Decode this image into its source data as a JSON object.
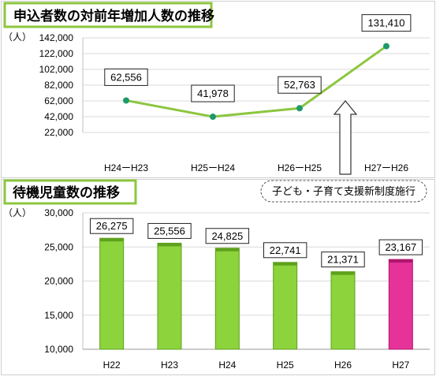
{
  "colors": {
    "title_border": "#8cc63f",
    "line": "#8cc63f",
    "marker": "#1e9a6a",
    "bar_green": "#8cd33c",
    "bar_green_dark": "#5ea11c",
    "bar_highlight": "#e6339a",
    "bar_highlight_dark": "#b0166c",
    "grid": "#d9d9d9",
    "axis": "#bfbfbf",
    "text": "#000000"
  },
  "chart_data": [
    {
      "type": "line",
      "title": "申込者数の対前年増加人数の推移",
      "unit_label": "（人）",
      "categories": [
        "H24ーH23",
        "H25ーH24",
        "H26ーH25",
        "H27ーH26"
      ],
      "values": [
        62556,
        41978,
        52763,
        131410
      ],
      "data_labels": [
        "62,556",
        "41,978",
        "52,763",
        "131,410"
      ],
      "ylim": [
        22000,
        142000
      ],
      "yticks": [
        22000,
        42000,
        62000,
        82000,
        102000,
        122000,
        142000
      ],
      "ytick_labels": [
        "22,000",
        "42,000",
        "62,000",
        "82,000",
        "102,000",
        "122,000",
        "142,000"
      ],
      "grid": true,
      "annotation": {
        "text": "子ども・子育て支援新制度施行",
        "arrow": "up"
      }
    },
    {
      "type": "bar",
      "title": "待機児童数の推移",
      "unit_label": "（人）",
      "categories": [
        "H22",
        "H23",
        "H24",
        "H25",
        "H26",
        "H27"
      ],
      "values": [
        26275,
        25556,
        24825,
        22741,
        21371,
        23167
      ],
      "data_labels": [
        "26,275",
        "25,556",
        "24,825",
        "22,741",
        "21,371",
        "23,167"
      ],
      "highlight_category": "H27",
      "ylim": [
        10000,
        30000
      ],
      "yticks": [
        10000,
        15000,
        20000,
        25000,
        30000
      ],
      "ytick_labels": [
        "10,000",
        "15,000",
        "20,000",
        "25,000",
        "30,000"
      ],
      "grid": true
    }
  ]
}
